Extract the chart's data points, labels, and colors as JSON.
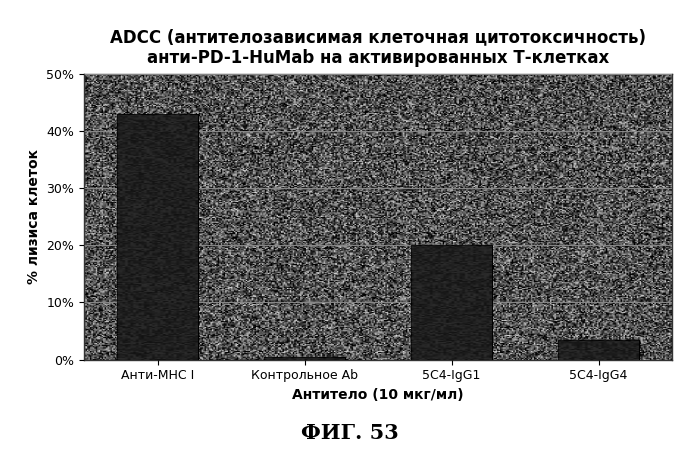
{
  "categories": [
    "Анти-MHC I",
    "Контрольное Ab",
    "5C4-IgG1",
    "5C4-IgG4"
  ],
  "values": [
    43.0,
    0.5,
    20.0,
    3.5
  ],
  "title_line1": "ADCC (антителозависимая клеточная цитотоксичность)",
  "title_line2": "анти-PD-1-HuMab на активированных Т-клетках",
  "xlabel": "Антитело (10 мкг/мл)",
  "ylabel": "% лизиса клеток",
  "ylim": [
    0,
    50
  ],
  "yticks": [
    0,
    10,
    20,
    30,
    40,
    50
  ],
  "ytick_labels": [
    "0%",
    "10%",
    "20%",
    "30%",
    "40%",
    "50%"
  ],
  "bar_color": "#1a1a1a",
  "fig_label": "ФИГ. 53",
  "title_fontsize": 12,
  "axis_fontsize": 10,
  "tick_fontsize": 9,
  "bar_width": 0.55,
  "noise_seed": 42,
  "noise_alpha": 0.55
}
